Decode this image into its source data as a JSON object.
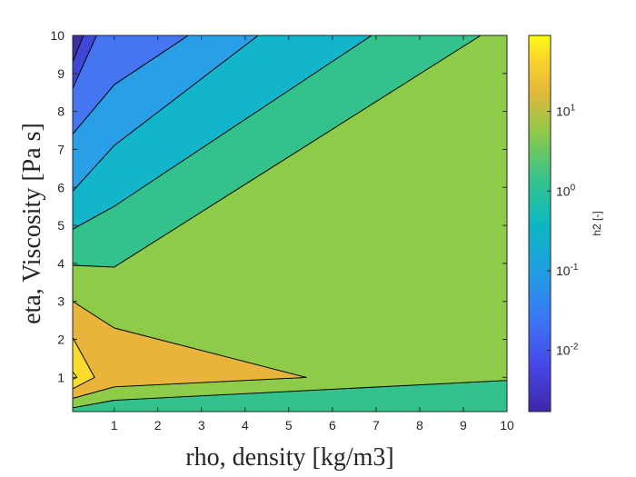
{
  "chart_data": {
    "type": "contourf",
    "title": "",
    "xlabel": "rho, density [kg/m3]",
    "ylabel": "eta, Viscosity [Pa s]",
    "xlim": [
      0.05,
      10
    ],
    "ylim": [
      0.1,
      10
    ],
    "x_ticks": [
      "1",
      "2",
      "3",
      "4",
      "5",
      "6",
      "7",
      "8",
      "9",
      "10"
    ],
    "y_ticks": [
      "1",
      "2",
      "3",
      "4",
      "5",
      "6",
      "7",
      "8",
      "9",
      "10"
    ],
    "grid": false,
    "colorbar": {
      "label": "h2 [-]",
      "scale": "log",
      "range": [
        0.0017,
        90
      ],
      "ticks": [
        {
          "value": 0.01,
          "base": "10",
          "exp": "-2"
        },
        {
          "value": 0.1,
          "base": "10",
          "exp": "-1"
        },
        {
          "value": 1,
          "base": "10",
          "exp": "0"
        },
        {
          "value": 10,
          "base": "10",
          "exp": "1"
        }
      ]
    },
    "regions": [
      {
        "level": "dark-violet",
        "color": "#3b2fa3",
        "polygon": [
          [
            0.05,
            10
          ],
          [
            0.05,
            9.3
          ],
          [
            0.3,
            10
          ]
        ]
      },
      {
        "level": "violet-blue",
        "color": "#3f48d6",
        "polygon": [
          [
            0.05,
            9.3
          ],
          [
            0.05,
            8.6
          ],
          [
            0.6,
            10
          ],
          [
            0.3,
            10
          ]
        ]
      },
      {
        "level": "blue",
        "color": "#4575f0",
        "polygon": [
          [
            0.05,
            8.6
          ],
          [
            0.05,
            7.4
          ],
          [
            1,
            8.7
          ],
          [
            2.7,
            10
          ],
          [
            0.6,
            10
          ]
        ]
      },
      {
        "level": "light-blue",
        "color": "#2b9ee8",
        "polygon": [
          [
            0.05,
            7.4
          ],
          [
            0.05,
            5.9
          ],
          [
            1,
            7.1
          ],
          [
            4.3,
            10
          ],
          [
            2.7,
            10
          ],
          [
            1,
            8.7
          ]
        ]
      },
      {
        "level": "cyan",
        "color": "#12b5c9",
        "polygon": [
          [
            0.05,
            5.9
          ],
          [
            0.05,
            4.9
          ],
          [
            1,
            5.5
          ],
          [
            6.9,
            10
          ],
          [
            4.3,
            10
          ],
          [
            1,
            7.1
          ]
        ]
      },
      {
        "level": "green",
        "color": "#33c28c",
        "polygon": [
          [
            0.05,
            4.9
          ],
          [
            0.05,
            3.95
          ],
          [
            1,
            3.9
          ],
          [
            9.4,
            10
          ],
          [
            6.9,
            10
          ],
          [
            1,
            5.5
          ]
        ]
      },
      {
        "level": "green",
        "color": "#33c28c",
        "polygon": [
          [
            0.05,
            0.1
          ],
          [
            10,
            0.1
          ],
          [
            10,
            0.92
          ],
          [
            1,
            0.4
          ],
          [
            0.05,
            0.2
          ]
        ]
      },
      {
        "level": "yellow-green",
        "color": "#8ecb49",
        "polygon": [
          [
            0.05,
            3.95
          ],
          [
            1,
            3.9
          ],
          [
            9.4,
            10
          ],
          [
            10,
            10
          ],
          [
            10,
            0.92
          ],
          [
            1,
            0.4
          ],
          [
            0.05,
            0.2
          ],
          [
            0.05,
            0.45
          ],
          [
            1,
            0.75
          ],
          [
            5.4,
            1
          ],
          [
            1,
            2.3
          ],
          [
            0.05,
            3.0
          ]
        ]
      },
      {
        "level": "orange",
        "color": "#e8b53a",
        "polygon": [
          [
            0.05,
            3.0
          ],
          [
            1,
            2.3
          ],
          [
            5.4,
            1
          ],
          [
            1,
            0.75
          ],
          [
            0.05,
            0.45
          ],
          [
            0.05,
            0.7
          ],
          [
            0.55,
            1.0
          ],
          [
            0.05,
            2.05
          ]
        ]
      },
      {
        "level": "yellow",
        "color": "#fadc2a",
        "polygon": [
          [
            0.05,
            2.05
          ],
          [
            0.55,
            1.0
          ],
          [
            0.05,
            0.7
          ]
        ]
      },
      {
        "level": "bright-yellow",
        "color": "#f5f528",
        "polygon": [
          [
            0.05,
            1.15
          ],
          [
            0.15,
            1.0
          ],
          [
            0.05,
            0.95
          ]
        ]
      }
    ]
  }
}
